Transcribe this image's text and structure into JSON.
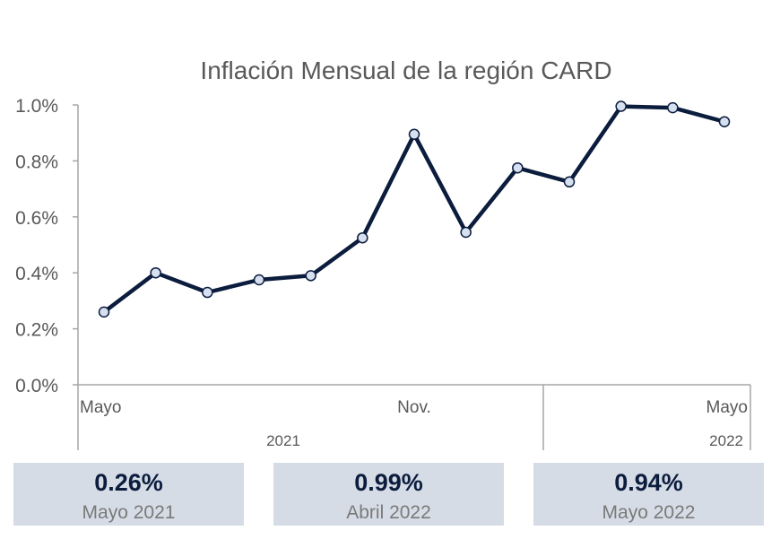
{
  "chart_data": {
    "type": "line",
    "title": "Inflación Mensual de la región CARD",
    "series": [
      {
        "values": [
          0.26,
          0.4,
          0.33,
          0.375,
          0.39,
          0.525,
          0.895,
          0.545,
          0.775,
          0.725,
          0.995,
          0.99,
          0.94
        ]
      }
    ],
    "x_labels": [
      "Mayo",
      "",
      "",
      "",
      "",
      "",
      "Nov.",
      "",
      "",
      "",
      "",
      "",
      "Mayo"
    ],
    "year_labels": [
      {
        "label": "2021"
      },
      {
        "label": "2022"
      }
    ],
    "y_ticks": [
      "0.0%",
      "0.2%",
      "0.4%",
      "0.6%",
      "0.8%",
      "1.0%"
    ],
    "ylim": [
      0,
      1.0
    ],
    "line_color": "#0b1c3d",
    "marker_fill": "#d6e0f0",
    "grid": false
  },
  "cards": [
    {
      "value": "0.26%",
      "label": "Mayo 2021"
    },
    {
      "value": "0.99%",
      "label": "Abril 2022"
    },
    {
      "value": "0.94%",
      "label": "Mayo 2022"
    }
  ]
}
